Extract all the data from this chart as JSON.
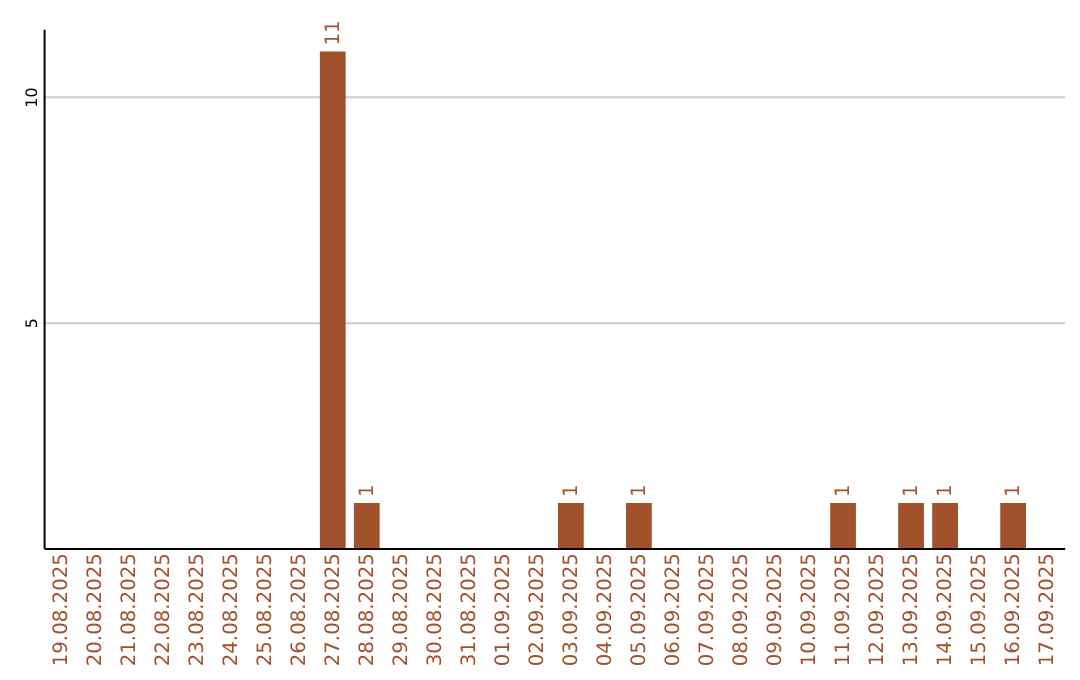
{
  "chart_data": {
    "type": "bar",
    "categories": [
      "19.08.2025",
      "20.08.2025",
      "21.08.2025",
      "22.08.2025",
      "23.08.2025",
      "24.08.2025",
      "25.08.2025",
      "26.08.2025",
      "27.08.2025",
      "28.08.2025",
      "29.08.2025",
      "30.08.2025",
      "31.08.2025",
      "01.09.2025",
      "02.09.2025",
      "03.09.2025",
      "04.09.2025",
      "05.09.2025",
      "06.09.2025",
      "07.09.2025",
      "08.09.2025",
      "09.09.2025",
      "10.09.2025",
      "11.09.2025",
      "12.09.2025",
      "13.09.2025",
      "14.09.2025",
      "15.09.2025",
      "16.09.2025",
      "17.09.2025"
    ],
    "values": [
      0,
      0,
      0,
      0,
      0,
      0,
      0,
      0,
      11,
      1,
      0,
      0,
      0,
      0,
      0,
      1,
      0,
      1,
      0,
      0,
      0,
      0,
      0,
      1,
      0,
      1,
      1,
      0,
      1,
      0
    ],
    "value_labels": [
      null,
      null,
      null,
      null,
      null,
      null,
      null,
      null,
      "11",
      "1",
      null,
      null,
      null,
      null,
      null,
      "1",
      null,
      "1",
      null,
      null,
      null,
      null,
      null,
      "1",
      null,
      "1",
      "1",
      null,
      "1",
      null
    ],
    "color": "#a0522d",
    "ylim": [
      0,
      11.5
    ],
    "yticks": [
      5,
      10
    ],
    "grid": "y"
  }
}
